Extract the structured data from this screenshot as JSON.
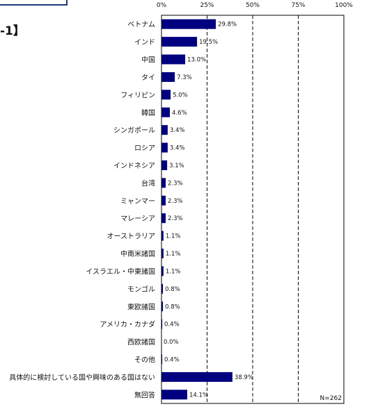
{
  "page": {
    "heading": "-1】"
  },
  "chart_data": {
    "type": "bar",
    "orientation": "horizontal",
    "categories": [
      "ベトナム",
      "インド",
      "中国",
      "タイ",
      "フィリピン",
      "韓国",
      "シンガポール",
      "ロシア",
      "インドネシア",
      "台湾",
      "ミャンマー",
      "マレーシア",
      "オーストラリア",
      "中南米諸国",
      "イスラエル・中東諸国",
      "モンゴル",
      "東欧諸国",
      "アメリカ・カナダ",
      "西欧諸国",
      "その他",
      "具体的に検討している国や興味のある国はない",
      "無回答"
    ],
    "values": [
      29.8,
      19.5,
      13.0,
      7.3,
      5.0,
      4.6,
      3.4,
      3.4,
      3.1,
      2.3,
      2.3,
      2.3,
      1.1,
      1.1,
      1.1,
      0.8,
      0.8,
      0.4,
      0.0,
      0.4,
      38.9,
      14.1
    ],
    "value_labels": [
      "29.8%",
      "19.5%",
      "13.0%",
      "7.3%",
      "5.0%",
      "4.6%",
      "3.4%",
      "3.4%",
      "3.1%",
      "2.3%",
      "2.3%",
      "2.3%",
      "1.1%",
      "1.1%",
      "1.1%",
      "0.8%",
      "0.8%",
      "0.4%",
      "0.0%",
      "0.4%",
      "38.9%",
      "14.1%"
    ],
    "xticks": [
      "0%",
      "25%",
      "50%",
      "75%",
      "100%"
    ],
    "xlim": [
      0,
      100
    ],
    "bar_color": "#000080",
    "gridlines": "dashed at 25%, 50%, 75%",
    "note": "N=262"
  }
}
